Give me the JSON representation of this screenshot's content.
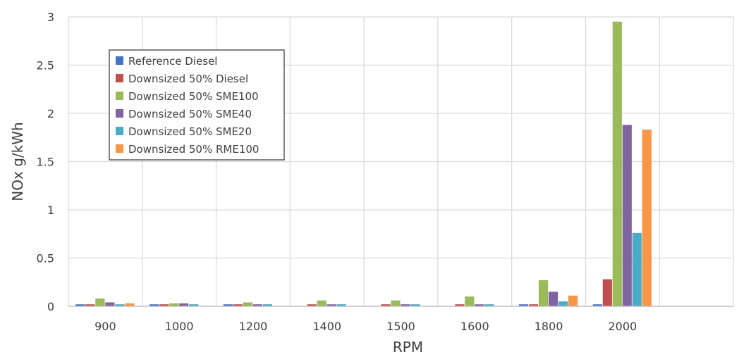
{
  "chart_data": {
    "type": "bar",
    "xlabel": "RPM",
    "ylabel": "NOx g/kWh",
    "ylim": [
      0,
      3
    ],
    "yticks": [
      "0",
      "0.5",
      "1",
      "1.5",
      "2",
      "2.5",
      "3"
    ],
    "categories": [
      "900",
      "1000",
      "1200",
      "1400",
      "1500",
      "1600",
      "1800",
      "2000"
    ],
    "grid": true,
    "legend_position": "top-left",
    "series": [
      {
        "name": "Reference Diesel",
        "color": "#4472C4",
        "values": [
          0.02,
          0.02,
          0.02,
          0.0,
          0.0,
          0.0,
          0.02,
          0.02
        ]
      },
      {
        "name": "Downsized 50% Diesel",
        "color": "#C0504D",
        "values": [
          0.02,
          0.02,
          0.02,
          0.02,
          0.02,
          0.02,
          0.02,
          0.28
        ]
      },
      {
        "name": "Downsized 50% SME100",
        "color": "#9BBB59",
        "values": [
          0.08,
          0.03,
          0.04,
          0.06,
          0.06,
          0.1,
          0.27,
          2.95
        ]
      },
      {
        "name": "Downsized 50% SME40",
        "color": "#8064A2",
        "values": [
          0.04,
          0.03,
          0.02,
          0.02,
          0.02,
          0.02,
          0.15,
          1.88
        ]
      },
      {
        "name": "Downsized 50% SME20",
        "color": "#4BACC6",
        "values": [
          0.02,
          0.02,
          0.02,
          0.02,
          0.02,
          0.02,
          0.05,
          0.76
        ]
      },
      {
        "name": "Downsized 50% RME100",
        "color": "#F79646",
        "values": [
          0.03,
          0.0,
          0.0,
          0.0,
          0.0,
          0.0,
          0.11,
          1.83
        ]
      }
    ]
  }
}
